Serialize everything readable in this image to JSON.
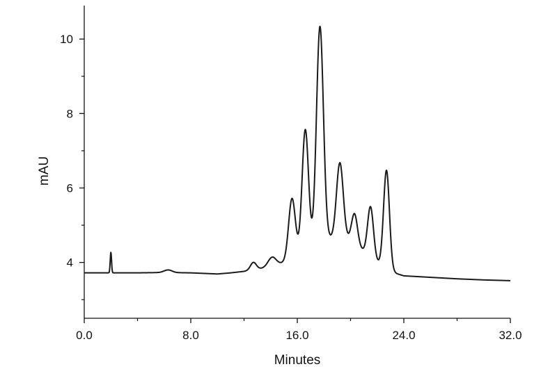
{
  "chart_data": {
    "type": "line",
    "title": "",
    "xlabel": "Minutes",
    "ylabel": "mAU",
    "xlim": [
      0,
      32
    ],
    "ylim": [
      2.5,
      10.9
    ],
    "x_ticks": [
      0,
      8,
      16,
      24,
      32
    ],
    "x_tick_labels": [
      "0.0",
      "8.0",
      "16.0",
      "24.0",
      "32.0"
    ],
    "y_ticks": [
      4,
      6,
      8,
      10
    ],
    "y_tick_labels": [
      "4",
      "6",
      "8",
      "10"
    ],
    "grid": false,
    "line_color": "#1a1a1a",
    "series": [
      {
        "baseline": [
          [
            0,
            3.72
          ],
          [
            2,
            3.72
          ],
          [
            4,
            3.72
          ],
          [
            6,
            3.73
          ],
          [
            8,
            3.72
          ],
          [
            10,
            3.69
          ],
          [
            11,
            3.72
          ],
          [
            12,
            3.76
          ],
          [
            13,
            3.82
          ],
          [
            14,
            3.88
          ],
          [
            15,
            4.0
          ],
          [
            16,
            4.2
          ],
          [
            17,
            4.4
          ],
          [
            18,
            4.6
          ],
          [
            19,
            4.7
          ],
          [
            20,
            4.6
          ],
          [
            21,
            4.3
          ],
          [
            22,
            4.0
          ],
          [
            23,
            3.75
          ],
          [
            24,
            3.64
          ],
          [
            26,
            3.6
          ],
          [
            28,
            3.56
          ],
          [
            30,
            3.53
          ],
          [
            32,
            3.51
          ]
        ],
        "peaks": [
          {
            "x": 2.0,
            "height": 0.55,
            "width": 0.05
          },
          {
            "x": 6.3,
            "height": 0.07,
            "width": 0.3
          },
          {
            "x": 12.7,
            "height": 0.2,
            "width": 0.22
          },
          {
            "x": 14.1,
            "height": 0.25,
            "width": 0.3
          },
          {
            "x": 15.6,
            "height": 1.6,
            "width": 0.25
          },
          {
            "x": 16.6,
            "height": 3.25,
            "width": 0.24
          },
          {
            "x": 17.7,
            "height": 5.8,
            "width": 0.26
          },
          {
            "x": 19.2,
            "height": 2.0,
            "width": 0.25
          },
          {
            "x": 20.3,
            "height": 0.8,
            "width": 0.22
          },
          {
            "x": 21.5,
            "height": 1.35,
            "width": 0.22
          },
          {
            "x": 22.7,
            "height": 2.65,
            "width": 0.22
          }
        ]
      }
    ]
  }
}
